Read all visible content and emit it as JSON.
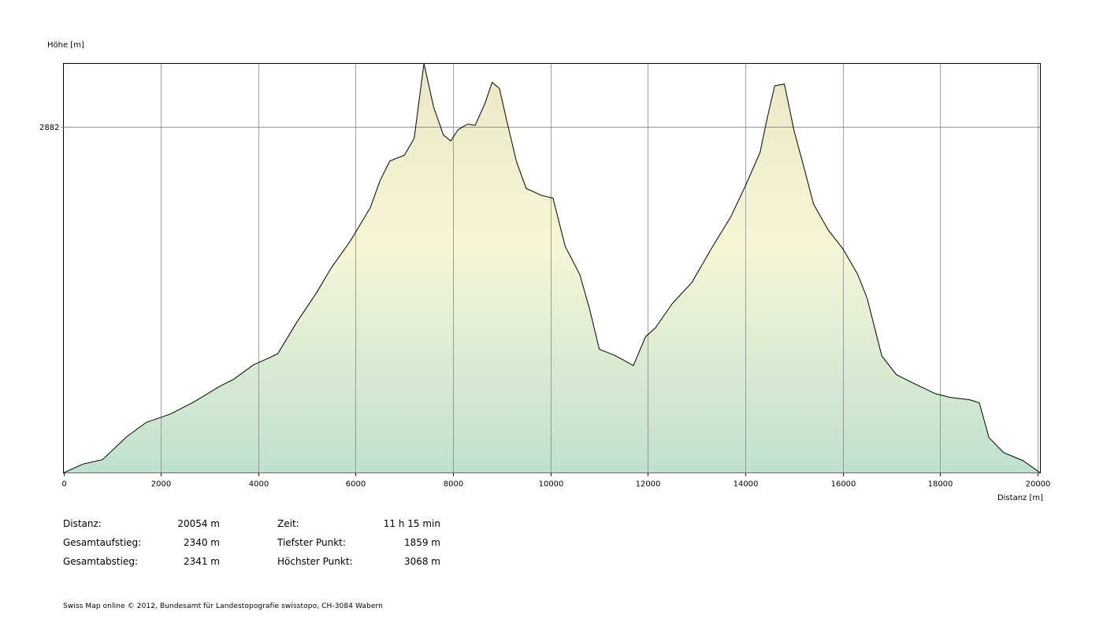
{
  "chart_data": {
    "type": "area",
    "ylabel": "Höhe [m]",
    "xlabel": "Distanz [m]",
    "xlim": [
      0,
      20054
    ],
    "ylim": [
      1859,
      3068
    ],
    "x_ticks": [
      "0",
      "2000",
      "4000",
      "6000",
      "8000",
      "10000",
      "12000",
      "14000",
      "16000",
      "18000",
      "20000"
    ],
    "x_tick_values": [
      0,
      2000,
      4000,
      6000,
      8000,
      10000,
      12000,
      14000,
      16000,
      18000,
      20000
    ],
    "y_ticks": [
      "2882"
    ],
    "y_tick_values": [
      2882
    ],
    "grid": true,
    "x": [
      0,
      400,
      800,
      1300,
      1700,
      2200,
      2700,
      3200,
      3500,
      3900,
      4200,
      4400,
      4800,
      5200,
      5500,
      5900,
      6300,
      6500,
      6700,
      7000,
      7200,
      7400,
      7600,
      7800,
      7950,
      8100,
      8300,
      8450,
      8650,
      8800,
      8950,
      9100,
      9300,
      9500,
      9800,
      10050,
      10300,
      10600,
      10800,
      11000,
      11300,
      11500,
      11700,
      11950,
      12150,
      12500,
      12900,
      13300,
      13700,
      14000,
      14300,
      14450,
      14600,
      14800,
      15000,
      15200,
      15400,
      15700,
      16000,
      16300,
      16500,
      16800,
      17100,
      17500,
      17900,
      18200,
      18600,
      18800,
      19000,
      19300,
      19700,
      20054
    ],
    "values": [
      1859,
      1885,
      1898,
      1966,
      2008,
      2033,
      2070,
      2114,
      2136,
      2178,
      2197,
      2211,
      2306,
      2392,
      2465,
      2546,
      2642,
      2722,
      2780,
      2797,
      2847,
      3068,
      2939,
      2857,
      2839,
      2872,
      2889,
      2885,
      2949,
      3012,
      2994,
      2899,
      2778,
      2699,
      2679,
      2670,
      2528,
      2445,
      2343,
      2224,
      2207,
      2192,
      2176,
      2261,
      2287,
      2359,
      2421,
      2521,
      2615,
      2707,
      2805,
      2909,
      3002,
      3007,
      2868,
      2761,
      2652,
      2576,
      2521,
      2446,
      2374,
      2204,
      2149,
      2120,
      2093,
      2082,
      2075,
      2066,
      1963,
      1919,
      1895,
      1859
    ]
  },
  "stats": {
    "distance_label": "Distanz:",
    "distance_value": "20054 m",
    "ascent_label": "Gesamtaufstieg:",
    "ascent_value": "2340 m",
    "descent_label": "Gesamtabstieg:",
    "descent_value": "2341 m",
    "time_label": "Zeit:",
    "time_value": "11 h 15 min",
    "lowest_label": "Tiefster Punkt:",
    "lowest_value": "1859 m",
    "highest_label": "Höchster Punkt:",
    "highest_value": "3068 m"
  },
  "copyright": "Swiss Map online  © 2012, Bundesamt für Landestopografie swisstopo, CH-3084 Wabern",
  "colors": {
    "fill_top": "#ebe6c7",
    "fill_mid": "#f6f6d6",
    "fill_bottom": "#bfe0cf",
    "line": "#000000",
    "grid": "#808080"
  }
}
